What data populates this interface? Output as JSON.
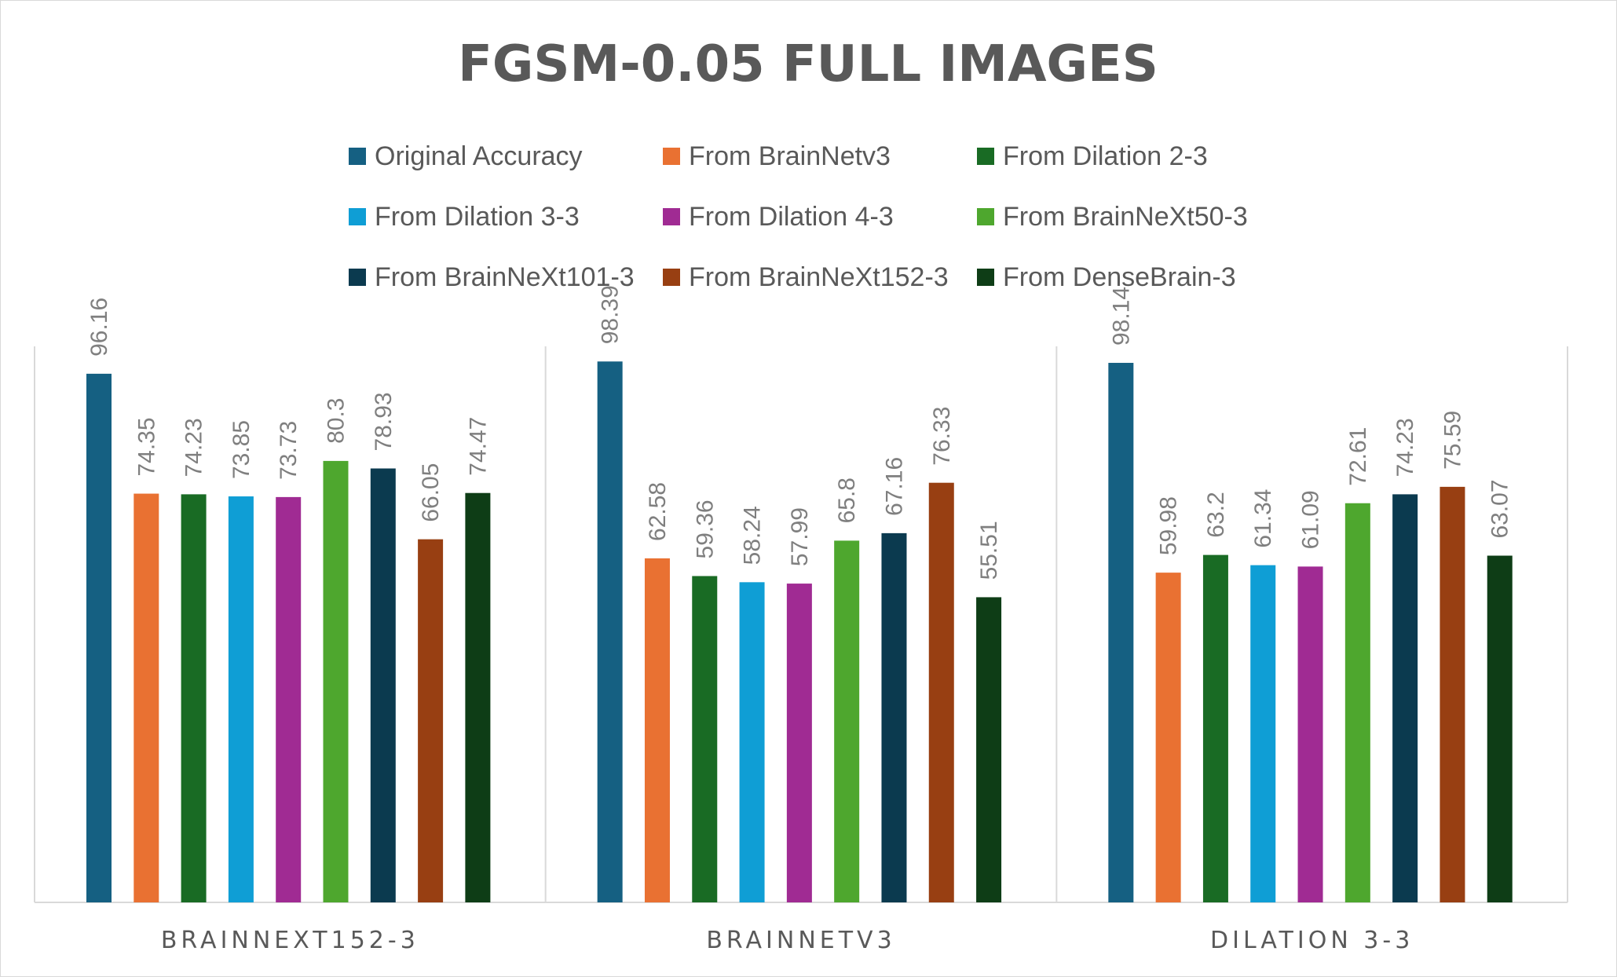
{
  "chart_data": {
    "type": "bar",
    "title": "FGSM-0.05 FULL IMAGES",
    "xlabel": "",
    "ylabel": "",
    "ylim": [
      0,
      100
    ],
    "grid": false,
    "legend_position": "top",
    "categories": [
      "BRAINNEXT152-3",
      "BRAINNETV3",
      "DILATION 3-3"
    ],
    "series": [
      {
        "name": "Original Accuracy",
        "color": "#156082",
        "values": [
          96.16,
          98.39,
          98.14
        ]
      },
      {
        "name": "From BrainNetv3",
        "color": "#E97132",
        "values": [
          74.35,
          62.58,
          59.98
        ]
      },
      {
        "name": "From Dilation 2-3",
        "color": "#196B24",
        "values": [
          74.23,
          59.36,
          63.2
        ]
      },
      {
        "name": "From Dilation 3-3",
        "color": "#0F9ED5",
        "values": [
          73.85,
          58.24,
          61.34
        ]
      },
      {
        "name": "From Dilation 4-3",
        "color": "#A02B93",
        "values": [
          73.73,
          57.99,
          61.09
        ]
      },
      {
        "name": "From BrainNeXt50-3",
        "color": "#4EA72E",
        "values": [
          80.3,
          65.8,
          72.61
        ]
      },
      {
        "name": "From BrainNeXt101-3",
        "color": "#0B3A4F",
        "values": [
          78.93,
          67.16,
          74.23
        ]
      },
      {
        "name": "From BrainNeXt152-3",
        "color": "#983F12",
        "values": [
          66.05,
          76.33,
          75.59
        ]
      },
      {
        "name": "From DenseBrain-3",
        "color": "#0E3D16",
        "values": [
          74.47,
          55.51,
          63.07
        ]
      }
    ]
  }
}
